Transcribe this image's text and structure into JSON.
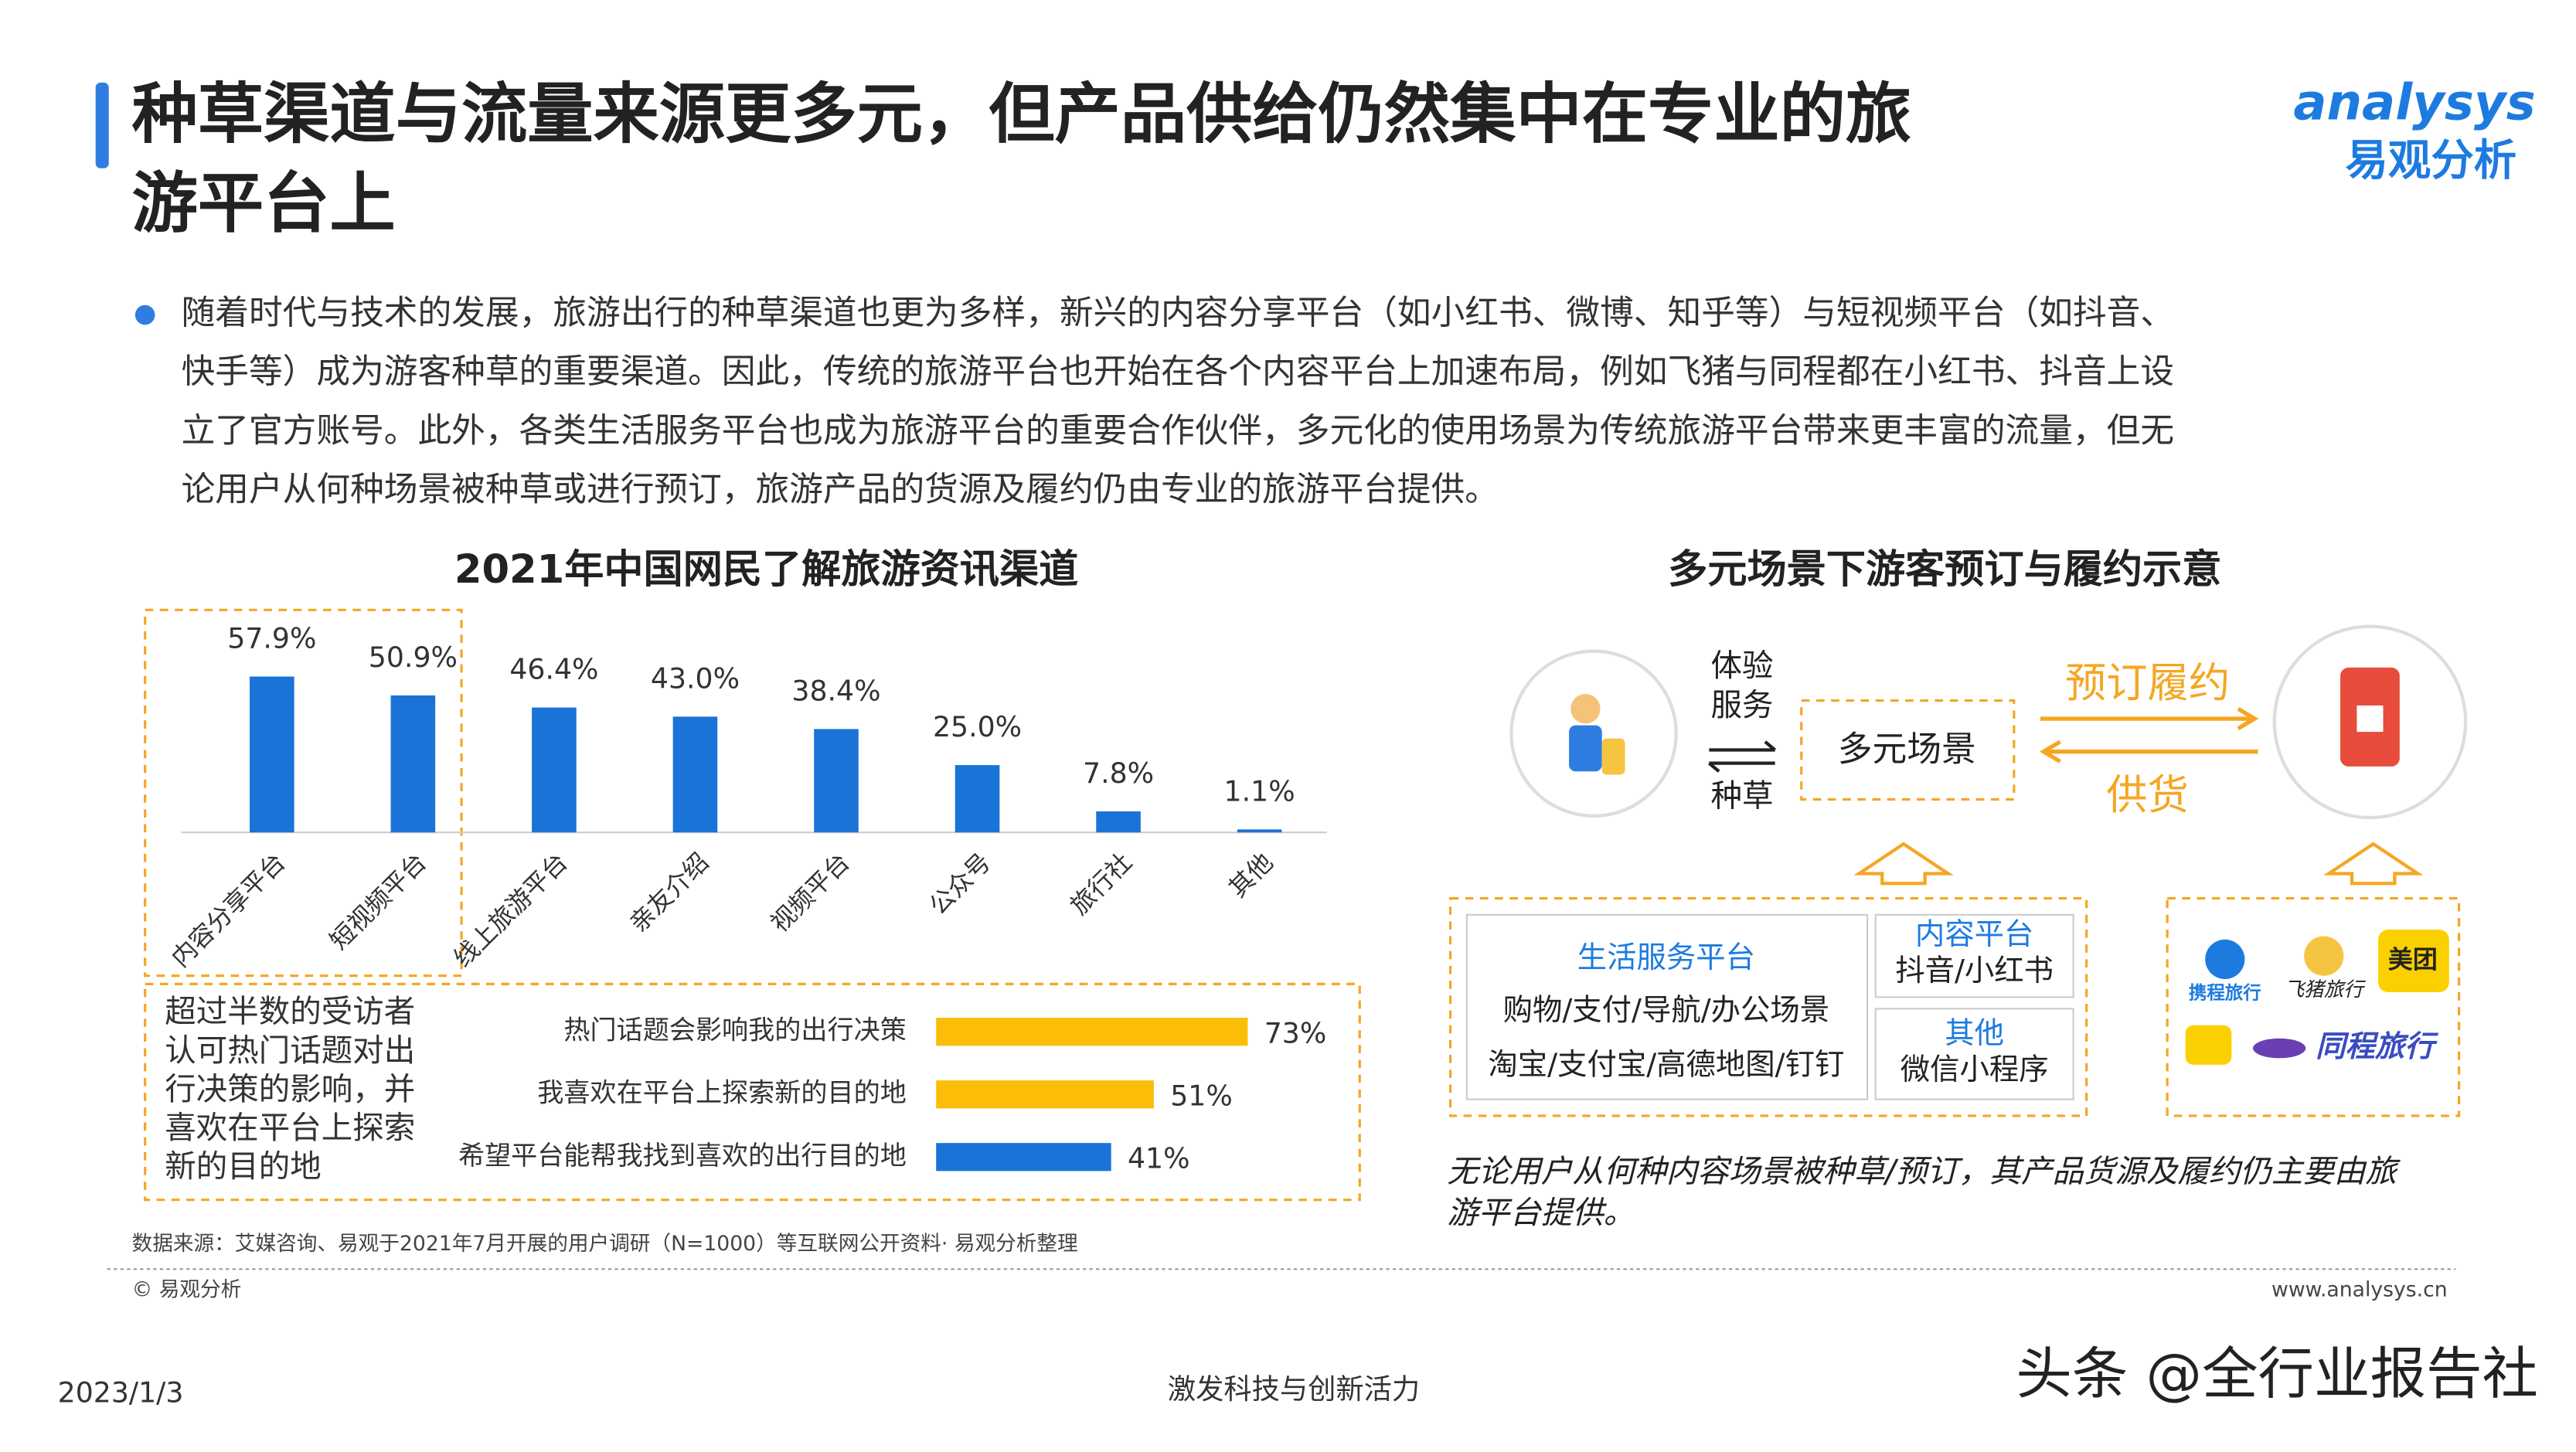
{
  "header": {
    "title_lines": [
      "种草渠道与流量来源更多元，但产品供给仍然集中在专业的旅",
      "游平台上"
    ],
    "logo_en": "analysys",
    "logo_cn": "易观分析"
  },
  "body": {
    "lines": [
      "随着时代与技术的发展，旅游出行的种草渠道也更为多样，新兴的内容分享平台（如小红书、微博、知乎等）与短视频平台（如抖音、",
      "快手等）成为游客种草的重要渠道。因此，传统的旅游平台也开始在各个内容平台上加速布局，例如飞猪与同程都在小红书、抖音上设",
      "立了官方账号。此外，各类生活服务平台也成为旅游平台的重要合作伙伴，多元化的使用场景为传统旅游平台带来更丰富的流量，但无",
      "论用户从何种场景被种草或进行预订，旅游产品的货源及履约仍由专业的旅游平台提供。"
    ]
  },
  "chart_data": [
    {
      "type": "bar",
      "title": "2021年中国网民了解旅游资讯渠道",
      "categories": [
        "内容分享平台",
        "短视频平台",
        "线上旅游平台",
        "亲友介绍",
        "视频平台",
        "公众号",
        "旅行社",
        "其他"
      ],
      "values": [
        57.9,
        50.9,
        46.4,
        43.0,
        38.4,
        25.0,
        7.8,
        1.1
      ],
      "value_labels": [
        "57.9%",
        "50.9%",
        "46.4%",
        "43.0%",
        "38.4%",
        "25.0%",
        "7.8%",
        "1.1%"
      ],
      "color": "#1a73d6",
      "ylim": [
        0,
        60
      ]
    },
    {
      "type": "hbar",
      "annotation_lines": [
        "超过半数的受访者",
        "认可热门话题对出",
        "行决策的影响，并",
        "喜欢在平台上探索",
        "新的目的地"
      ],
      "categories": [
        "热门话题会影响我的出行决策",
        "我喜欢在平台上探索新的目的地",
        "希望平台能帮我找到喜欢的出行目的地"
      ],
      "values": [
        73,
        51,
        41
      ],
      "value_labels": [
        "73%",
        "51%",
        "41%"
      ],
      "colors": [
        "#fbbd08",
        "#fbbd08",
        "#1a73d6"
      ],
      "xlim": [
        0,
        100
      ]
    }
  ],
  "diagram": {
    "title": "多元场景下游客预订与履约示意",
    "left_label_lines": [
      "体验",
      "服务"
    ],
    "left_bottom": "种草",
    "center": "多元场景",
    "top_arrow": "预订履约",
    "bottom_arrow": "供货",
    "life": {
      "name": "生活服务平台",
      "lines": [
        "购物/支付/导航/办公场景",
        "淘宝/支付宝/高德地图/钉钉"
      ]
    },
    "content": {
      "name": "内容平台",
      "line": "抖音/小红书"
    },
    "other": {
      "name": "其他",
      "line": "微信小程序"
    },
    "logos": [
      "携程旅行",
      "飞猪旅行",
      "美团",
      "同程旅行"
    ],
    "caption_lines": [
      "无论用户从何种内容场景被种草/预订，其产品货源及履约仍主要由旅",
      "游平台提供。"
    ]
  },
  "footer": {
    "source": "数据来源：艾媒咨询、易观于2021年7月开展的用户调研（N=1000）等互联网公开资料· 易观分析整理",
    "copyright": "© 易观分析",
    "site": "www.analysys.cn",
    "date": "2023/1/3",
    "slogan": "激发科技与创新活力",
    "watermark": "头条 @全行业报告社"
  }
}
